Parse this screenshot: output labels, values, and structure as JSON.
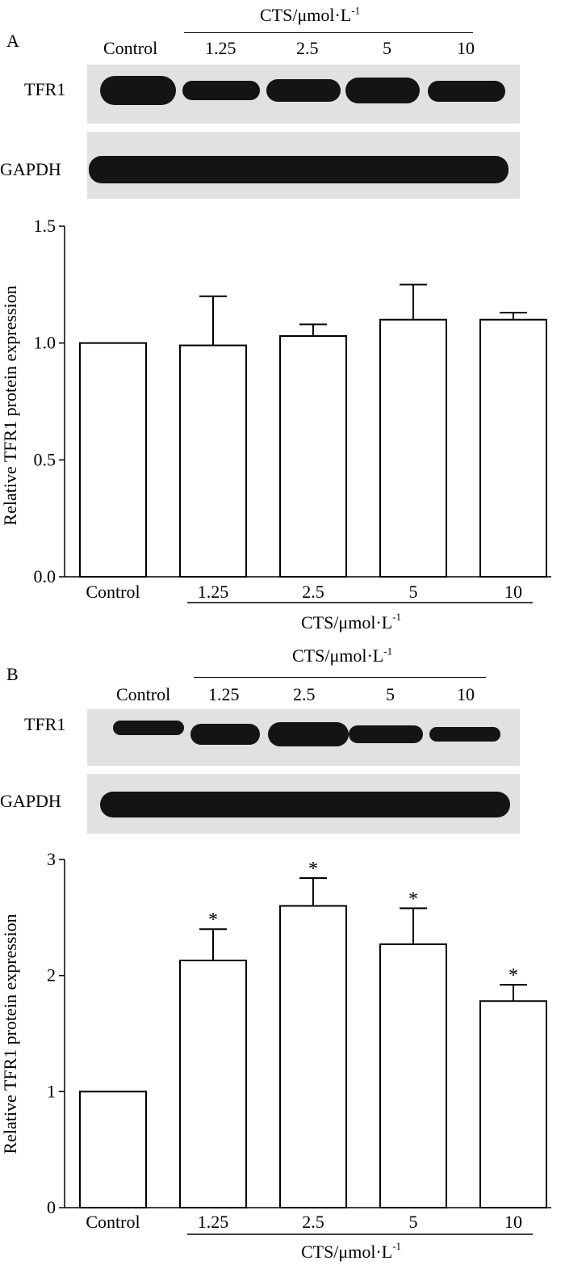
{
  "panels": [
    {
      "letter": "A",
      "treatment_label": "CTS/μmol·L",
      "treatment_exp": "-1",
      "lanes": [
        "Control",
        "1.25",
        "2.5",
        "5",
        "10"
      ],
      "blot_rows": [
        {
          "label": "TFR1"
        },
        {
          "label": "GAPDH"
        }
      ]
    },
    {
      "letter": "B",
      "treatment_label": "CTS/μmol·L",
      "treatment_exp": "-1",
      "lanes": [
        "Control",
        "1.25",
        "2.5",
        "5",
        "10"
      ],
      "blot_rows": [
        {
          "label": "TFR1"
        },
        {
          "label": "GAPDH"
        }
      ]
    }
  ],
  "chart_data": [
    {
      "type": "bar",
      "categories": [
        "Control",
        "1.25",
        "2.5",
        "5",
        "10"
      ],
      "values": [
        1.0,
        0.99,
        1.03,
        1.1,
        1.1
      ],
      "errors": [
        0,
        0.21,
        0.05,
        0.15,
        0.03
      ],
      "significant": [
        false,
        false,
        false,
        false,
        false
      ],
      "ylabel": "Relative TFR1 protein expression",
      "xlabel": "CTS/μmol·L",
      "xlabel_exp": "-1",
      "ylim": [
        0,
        1.5
      ],
      "yticks": [
        "0.0",
        "0.5",
        "1.0",
        "1.5"
      ],
      "significance_marker": "*",
      "bar_color": "#ffffff"
    },
    {
      "type": "bar",
      "categories": [
        "Control",
        "1.25",
        "2.5",
        "5",
        "10"
      ],
      "values": [
        1.0,
        2.13,
        2.6,
        2.27,
        1.78
      ],
      "errors": [
        0,
        0.27,
        0.24,
        0.31,
        0.14
      ],
      "significant": [
        false,
        true,
        true,
        true,
        true
      ],
      "ylabel": "Relative TFR1 protein expression",
      "xlabel": "CTS/μmol·L",
      "xlabel_exp": "-1",
      "ylim": [
        0,
        3
      ],
      "yticks": [
        "0",
        "1",
        "2",
        "3"
      ],
      "significance_marker": "*",
      "bar_color": "#ffffff"
    }
  ]
}
